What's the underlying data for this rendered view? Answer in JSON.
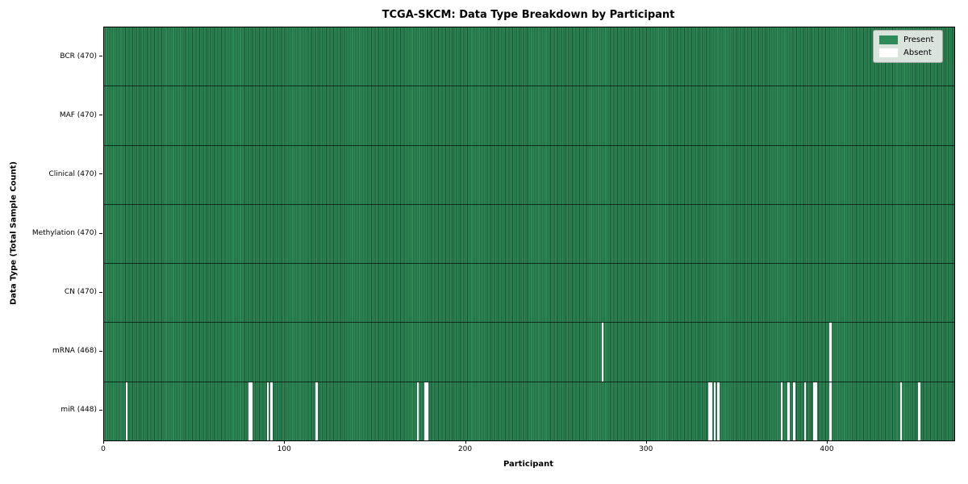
{
  "title": "TCGA-SKCM: Data Type Breakdown by Participant",
  "axes": {
    "xlabel": "Participant",
    "ylabel": "Data Type (Total Sample Count)"
  },
  "colors": {
    "present": "#2e8b57",
    "present_edge": "#1a4f31",
    "absent": "#ffffff",
    "spine": "#000000",
    "row_separator": "rgba(0,0,0,0.65)"
  },
  "chart_data": {
    "type": "heatmap",
    "title": "TCGA-SKCM: Data Type Breakdown by Participant",
    "xlabel": "Participant",
    "ylabel": "Data Type (Total Sample Count)",
    "x_range": [
      0,
      470
    ],
    "x_ticks": [
      0,
      100,
      200,
      300,
      400
    ],
    "total_participants": 470,
    "legend_position": "upper right",
    "legend": [
      {
        "label": "Present",
        "color": "#2e8b57"
      },
      {
        "label": "Absent",
        "color": "#ffffff"
      }
    ],
    "rows": [
      {
        "label": "BCR (470)",
        "data_type": "BCR",
        "present_count": 470,
        "absent_participants": []
      },
      {
        "label": "MAF (470)",
        "data_type": "MAF",
        "present_count": 470,
        "absent_participants": []
      },
      {
        "label": "Clinical (470)",
        "data_type": "Clinical",
        "present_count": 470,
        "absent_participants": []
      },
      {
        "label": "Methylation (470)",
        "data_type": "Methylation",
        "present_count": 470,
        "absent_participants": []
      },
      {
        "label": "CN (470)",
        "data_type": "CN",
        "present_count": 470,
        "absent_participants": []
      },
      {
        "label": "mRNA (468)",
        "data_type": "mRNA",
        "present_count": 468,
        "absent_participants": [
          275,
          401
        ]
      },
      {
        "label": "miR (448)",
        "data_type": "miR",
        "present_count": 448,
        "absent_participants": [
          12,
          80,
          81,
          90,
          92,
          117,
          173,
          177,
          178,
          334,
          335,
          337,
          339,
          374,
          378,
          381,
          387,
          392,
          393,
          401,
          440,
          450
        ]
      }
    ]
  }
}
